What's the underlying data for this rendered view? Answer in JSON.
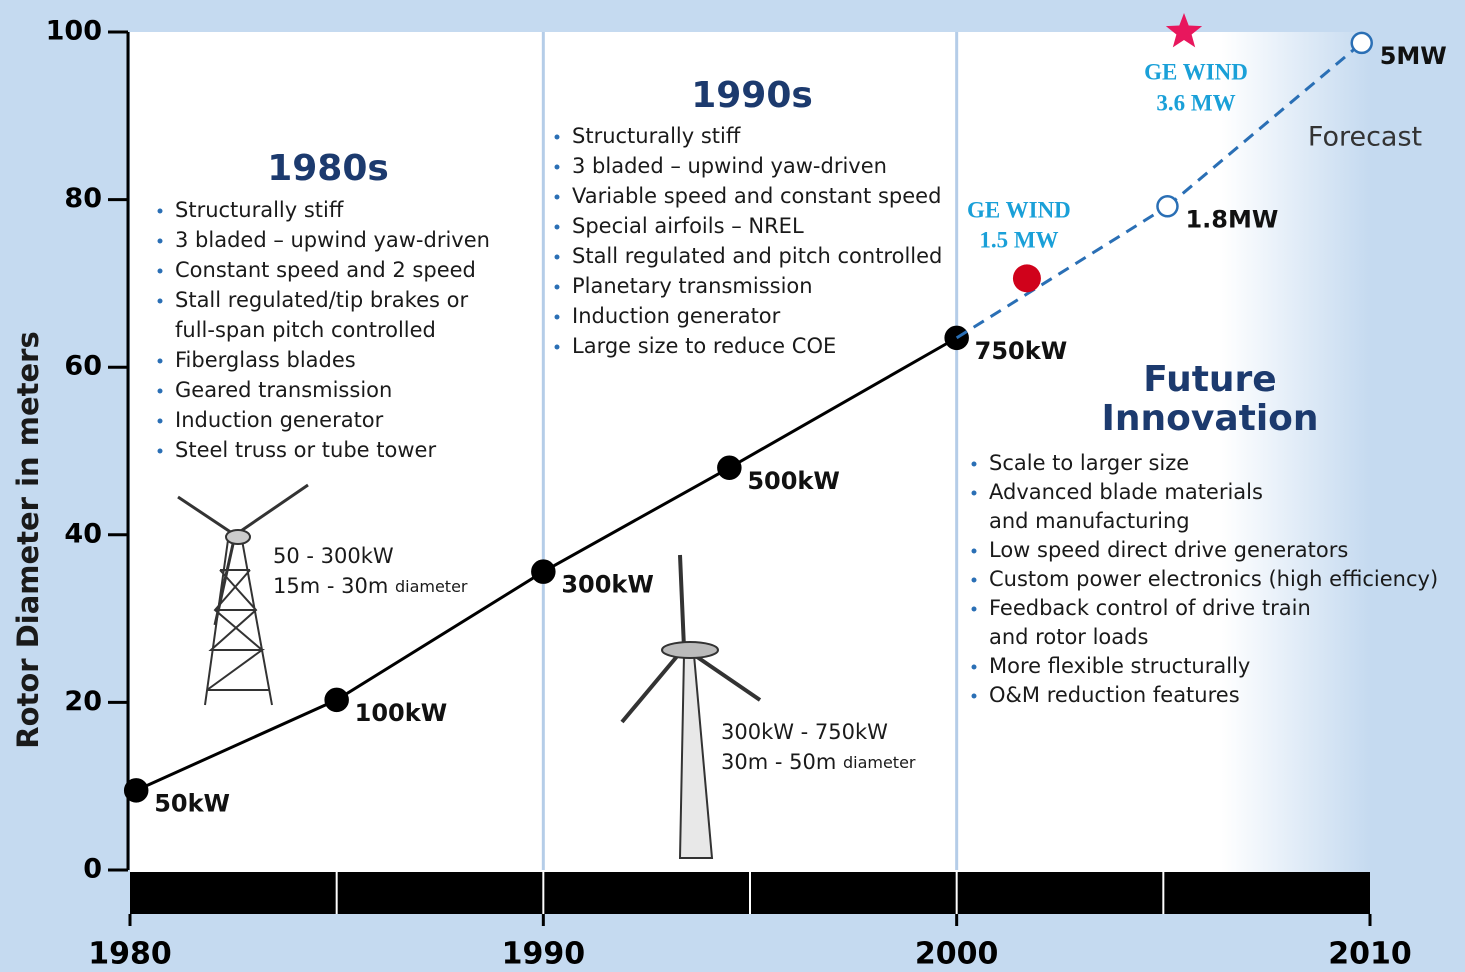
{
  "chart_data": {
    "type": "line",
    "y_label": "Rotor Diameter in meters",
    "xlim": [
      1980,
      2010
    ],
    "xticks": [
      1980,
      1990,
      2000,
      2010
    ],
    "ylim": [
      0,
      100
    ],
    "yticks": [
      0,
      20,
      40,
      60,
      80,
      100
    ],
    "band_dividers": [
      1985,
      1990,
      1995,
      2000,
      2005
    ],
    "era_lines": [
      1990,
      2000
    ],
    "series": [
      {
        "color": "#000000",
        "style": "solid",
        "marker": "filled",
        "x": [
          1980.15,
          1985,
          1990,
          1994.5,
          2000
        ],
        "values": [
          9.5,
          20.3,
          35.6,
          48,
          63.5
        ],
        "point_labels": [
          "50kW",
          "100kW",
          "300kW",
          "500kW",
          "750kW"
        ]
      },
      {
        "color": "#2a6fb5",
        "style": "dashed",
        "marker": "open",
        "x": [
          2005.1,
          2009.8
        ],
        "values": [
          79.2,
          98.7
        ],
        "point_labels": [
          "1.8MW",
          "5MW"
        ]
      }
    ],
    "highlights": [
      {
        "marker": "circle",
        "color": "#d0021b",
        "x": 2001.7,
        "value": 70.6,
        "lines": [
          "GE WIND",
          "1.5 MW"
        ]
      },
      {
        "marker": "star",
        "color": "#e8175d",
        "x": 2005.5,
        "value": 100,
        "lines": [
          "GE WIND",
          "3.6 MW"
        ]
      }
    ],
    "forecast_label": "Forecast",
    "eras": [
      {
        "title": [
          "1980s"
        ],
        "bullets": [
          [
            "Structurally stiff"
          ],
          [
            "3 bladed – upwind yaw-driven"
          ],
          [
            "Constant speed and 2 speed"
          ],
          [
            "Stall regulated/tip brakes or",
            "full-span pitch controlled"
          ],
          [
            "Fiberglass blades"
          ],
          [
            "Geared transmission"
          ],
          [
            "Induction generator"
          ],
          [
            "Steel truss or tube tower"
          ]
        ]
      },
      {
        "title": [
          "1990s"
        ],
        "bullets": [
          [
            "Structurally stiff"
          ],
          [
            "3 bladed – upwind yaw-driven"
          ],
          [
            "Variable speed and constant speed"
          ],
          [
            "Special airfoils – NREL"
          ],
          [
            "Stall regulated and pitch controlled"
          ],
          [
            "Planetary transmission"
          ],
          [
            "Induction generator"
          ],
          [
            "Large size to reduce COE"
          ]
        ]
      },
      {
        "title": [
          "Future",
          "Innovation"
        ],
        "bullets": [
          [
            "Scale to larger size"
          ],
          [
            "Advanced blade materials",
            "and manufacturing"
          ],
          [
            "Low speed direct drive generators"
          ],
          [
            "Custom power electronics (high efficiency)"
          ],
          [
            "Feedback control of drive train",
            "and rotor loads"
          ],
          [
            "More flexible structurally"
          ],
          [
            "O&M reduction features"
          ]
        ]
      }
    ],
    "turbines": [
      {
        "lines": [
          {
            "text": "50 - 300kW"
          },
          {
            "text": "15m - 30m",
            "small": "diameter"
          }
        ]
      },
      {
        "lines": [
          {
            "text": "300kW - 750kW"
          },
          {
            "text": "30m - 50m",
            "small": "diameter"
          }
        ]
      }
    ]
  }
}
